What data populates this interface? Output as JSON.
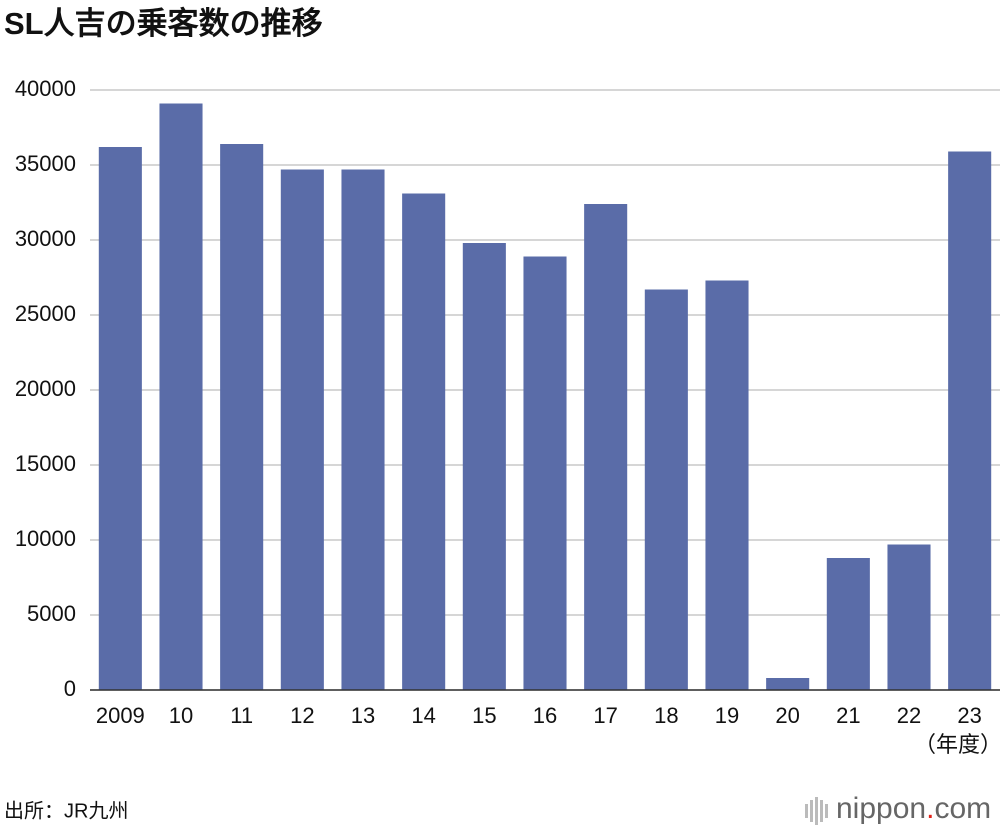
{
  "chart_data": {
    "type": "bar",
    "title": "SL人吉の乗客数の推移",
    "categories": [
      "2009",
      "10",
      "11",
      "12",
      "13",
      "14",
      "15",
      "16",
      "17",
      "18",
      "19",
      "20",
      "21",
      "22",
      "23"
    ],
    "values": [
      36200,
      39100,
      36400,
      34700,
      34700,
      33100,
      29800,
      28900,
      32400,
      26700,
      27300,
      800,
      8800,
      9700,
      35900
    ],
    "color": "#5a6ca8",
    "x_unit": "（年度）",
    "ylim": [
      0,
      40000
    ],
    "yticks": [
      0,
      5000,
      10000,
      15000,
      20000,
      25000,
      30000,
      35000,
      40000
    ],
    "grid": true,
    "source": "出所：JR九州",
    "logo": [
      "nippon",
      ".",
      "com"
    ]
  }
}
